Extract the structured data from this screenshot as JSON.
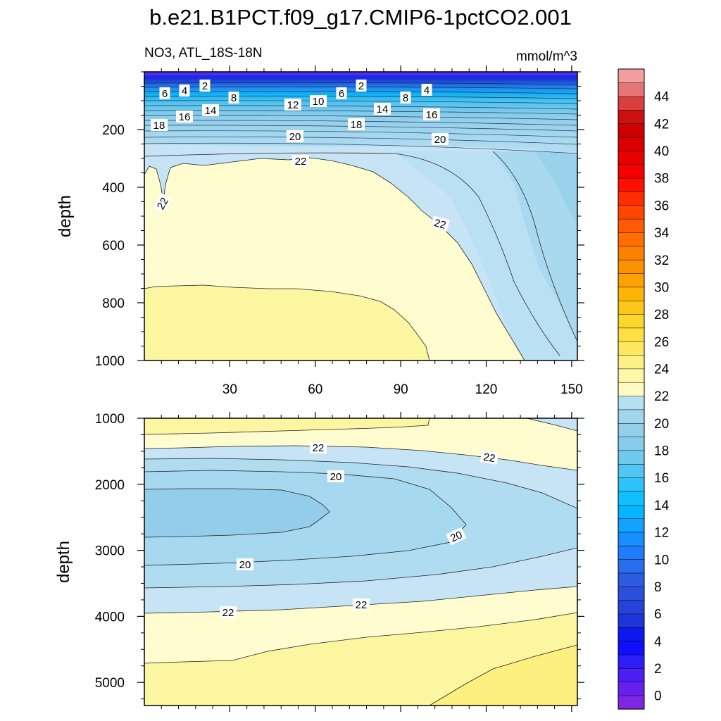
{
  "chart_data": {
    "type": "contour",
    "title": "b.e21.B1PCT.f09_g17.CMIP6-1pctCO2.001",
    "subtitle_left": "NO3, ATL_18S-18N",
    "subtitle_right": "mmol/m^3",
    "x_ticks": [
      30,
      60,
      90,
      120,
      150
    ],
    "x_range": [
      0,
      152
    ],
    "colorbar": {
      "min": -1,
      "max": 46,
      "step": 1,
      "labels": [
        0,
        2,
        4,
        6,
        8,
        10,
        12,
        14,
        16,
        18,
        20,
        22,
        24,
        26,
        28,
        30,
        32,
        34,
        36,
        38,
        40,
        42,
        44
      ],
      "stops": [
        {
          "v": -1,
          "c": "#8a2be2"
        },
        {
          "v": 1,
          "c": "#5a1ef0"
        },
        {
          "v": 3,
          "c": "#1e1efa"
        },
        {
          "v": 4,
          "c": "#0000ff"
        },
        {
          "v": 5,
          "c": "#1a2edc"
        },
        {
          "v": 8,
          "c": "#2f55d8"
        },
        {
          "v": 11,
          "c": "#1e84ff"
        },
        {
          "v": 14,
          "c": "#00bfff"
        },
        {
          "v": 16,
          "c": "#3cc3f5"
        },
        {
          "v": 17,
          "c": "#66c9f0"
        },
        {
          "v": 19,
          "c": "#8ecde8"
        },
        {
          "v": 21,
          "c": "#a8d9ef"
        },
        {
          "v": 22,
          "c": "#c6e4f5"
        },
        {
          "v": 22.01,
          "c": "#fffdd0"
        },
        {
          "v": 24,
          "c": "#fdf59a"
        },
        {
          "v": 26,
          "c": "#fde44a"
        },
        {
          "v": 28,
          "c": "#fdd122"
        },
        {
          "v": 30,
          "c": "#fbaa00"
        },
        {
          "v": 32,
          "c": "#fb8a00"
        },
        {
          "v": 34,
          "c": "#ff6400"
        },
        {
          "v": 36,
          "c": "#ff3c00"
        },
        {
          "v": 38,
          "c": "#ff0000"
        },
        {
          "v": 40,
          "c": "#e20000"
        },
        {
          "v": 42,
          "c": "#c80000"
        },
        {
          "v": 43,
          "c": "#cf2020"
        },
        {
          "v": 44,
          "c": "#e06060"
        },
        {
          "v": 46,
          "c": "#f8b4b4"
        }
      ]
    },
    "panels": [
      {
        "ylabel": "depth",
        "y_range": [
          0,
          1000
        ],
        "y_ticks": [
          200,
          400,
          600,
          800,
          1000
        ],
        "region_colors": {
          "cyan_20_22": "#c6e4f5",
          "yellow_22_24": "#fffccf",
          "yellow_24_26": "#fdf6a0",
          "blue_18_20": "#a8d9ef",
          "blue_16_18": "#8ecde8"
        },
        "contour_labels": [
          "2",
          "4",
          "6",
          "2",
          "6",
          "4",
          "8",
          "8",
          "10",
          "12",
          "14",
          "14",
          "16",
          "16",
          "18",
          "18",
          "20",
          "20",
          "22",
          "22",
          "22"
        ]
      },
      {
        "ylabel": "depth",
        "y_range": [
          1000,
          5350
        ],
        "y_ticks": [
          1000,
          2000,
          3000,
          4000,
          5000
        ],
        "region_colors": {
          "yellow_22_24": "#fffccf",
          "yellow_24_26": "#fdf6a0",
          "yellow_26": "#fdf081",
          "cyan_20_22": "#c6e4f5",
          "blue_19_20": "#a6d8ef",
          "blue_18_19": "#93cdea"
        },
        "contour_labels": [
          "22",
          "22",
          "20",
          "20",
          "20",
          "22",
          "22"
        ]
      }
    ]
  }
}
